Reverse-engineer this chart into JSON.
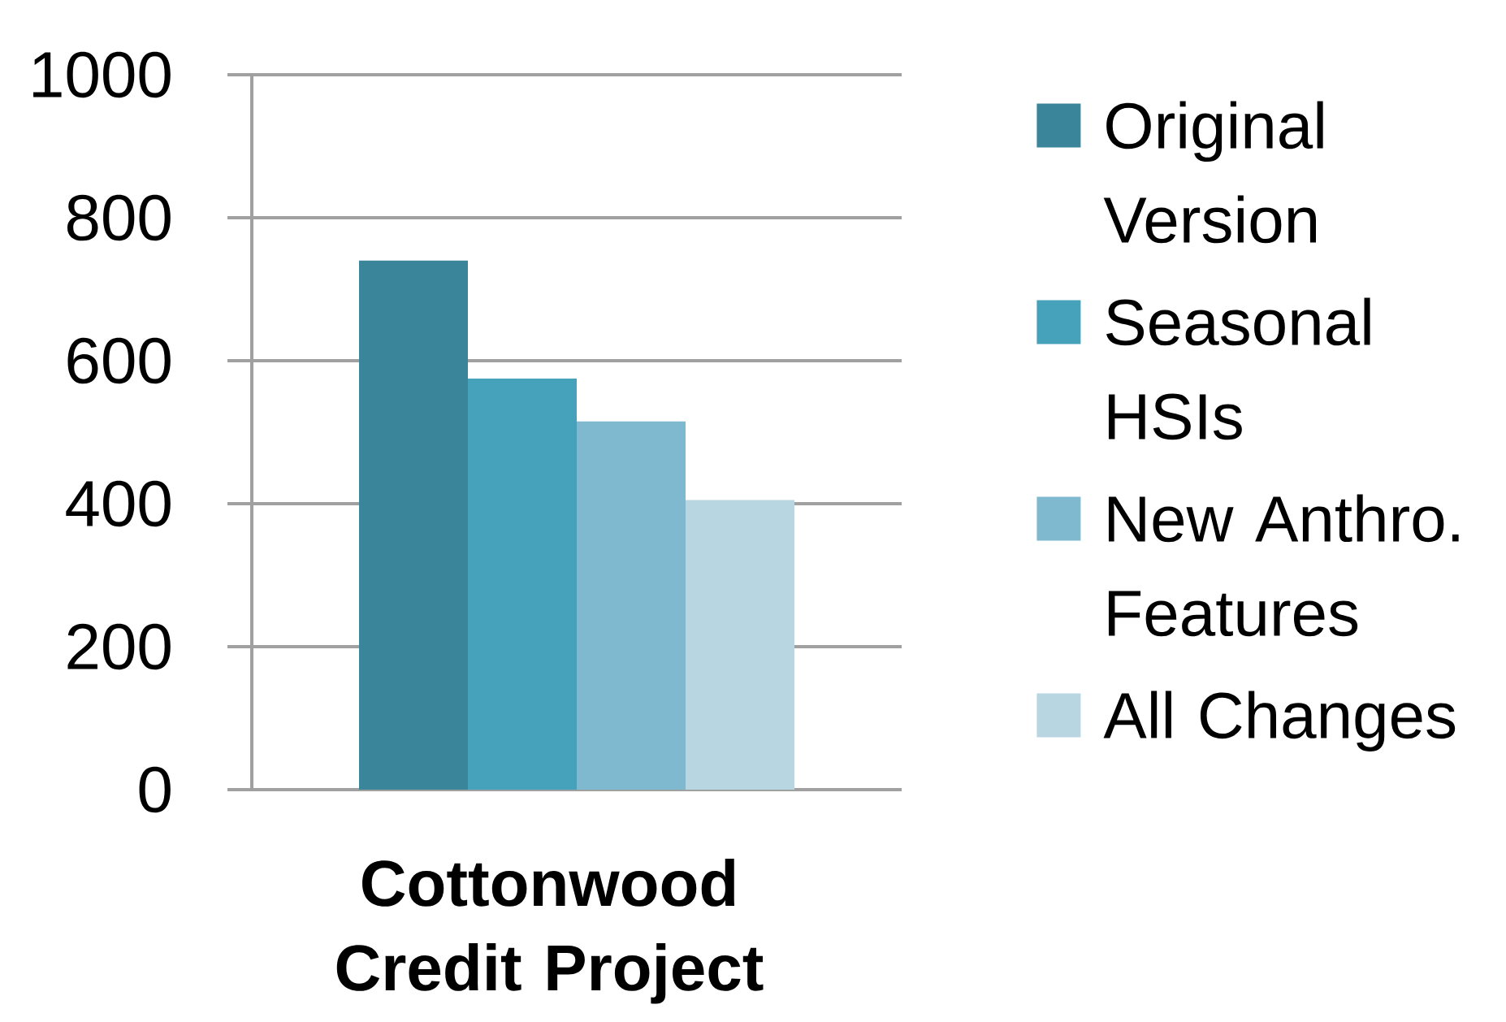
{
  "chart_data": {
    "type": "bar",
    "categories": [
      "Cottonwood Credit Project"
    ],
    "series": [
      {
        "name": "Original Version",
        "color": "#3a8599",
        "values": [
          740
        ]
      },
      {
        "name": "Seasonal HSIs",
        "color": "#46a1bb",
        "values": [
          575
        ]
      },
      {
        "name": "New Anthro. Features",
        "color": "#7fb9cf",
        "values": [
          515
        ]
      },
      {
        "name": "All Changes",
        "color": "#b7d6e1",
        "values": [
          405
        ]
      }
    ],
    "ylim": [
      0,
      1000
    ],
    "yticks": [
      0,
      200,
      400,
      600,
      800,
      1000
    ],
    "grid": "y",
    "legend": "right"
  }
}
